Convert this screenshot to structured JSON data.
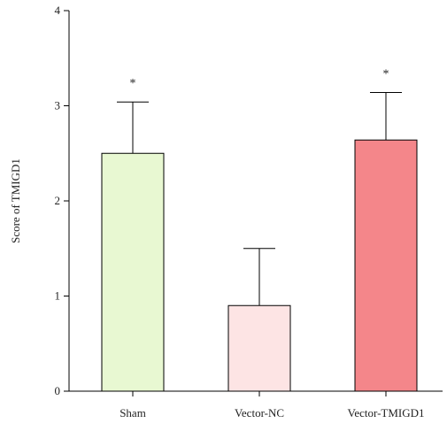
{
  "chart_data": {
    "type": "bar",
    "categories": [
      "Sham",
      "Vector-NC",
      "Vector-TMIGD1"
    ],
    "values": [
      2.5,
      0.9,
      2.64
    ],
    "errors": [
      0.54,
      0.6,
      0.5
    ],
    "bar_colors": [
      "#e8f8d2",
      "#fde4e4",
      "#f4868a"
    ],
    "annotations": [
      "*",
      "",
      "*"
    ],
    "ylabel": "Score of TMIGD1",
    "ylim": [
      0,
      4
    ],
    "yticks": [
      0,
      1,
      2,
      3,
      4
    ],
    "grid": false,
    "legend": "none"
  }
}
